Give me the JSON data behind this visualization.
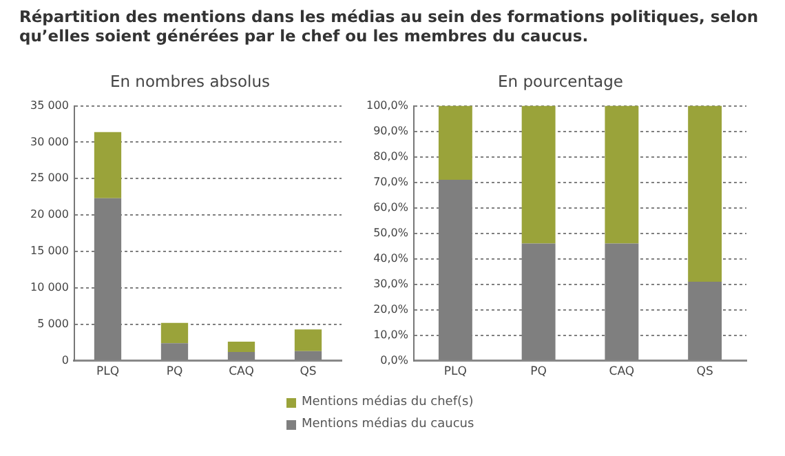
{
  "chart_data": [
    {
      "type": "bar",
      "title": "Répartition des mentions dans les médias au sein des formations politiques, selon qu’elles soient générées par le chef ou les membres du caucus.",
      "subtitle": "En nombres absolus",
      "categories": [
        "PLQ",
        "PQ",
        "CAQ",
        "QS"
      ],
      "stacked": true,
      "series": [
        {
          "name": "Mentions médias du caucus",
          "color": "#7f7f7f",
          "values": [
            22300,
            2400,
            1200,
            1300
          ]
        },
        {
          "name": "Mentions médias du chef(s)",
          "color": "#9aa33a",
          "values": [
            9100,
            2800,
            1400,
            3000
          ]
        }
      ],
      "ylim": [
        0,
        35000
      ],
      "yticks": [
        {
          "value": 0,
          "label": "0"
        },
        {
          "value": 5000,
          "label": "5 000"
        },
        {
          "value": 10000,
          "label": "10 000"
        },
        {
          "value": 15000,
          "label": "15 000"
        },
        {
          "value": 20000,
          "label": "20 000"
        },
        {
          "value": 25000,
          "label": "25 000"
        },
        {
          "value": 30000,
          "label": "30 000"
        },
        {
          "value": 35000,
          "label": "35 000"
        }
      ],
      "grid": "y",
      "legend": "bottom"
    },
    {
      "type": "bar",
      "subtitle": "En pourcentage",
      "categories": [
        "PLQ",
        "PQ",
        "CAQ",
        "QS"
      ],
      "stacked": true,
      "series": [
        {
          "name": "Mentions médias du caucus",
          "color": "#7f7f7f",
          "values": [
            71,
            46,
            46,
            31
          ]
        },
        {
          "name": "Mentions médias du chef(s)",
          "color": "#9aa33a",
          "values": [
            29,
            54,
            54,
            69
          ]
        }
      ],
      "ylim": [
        0,
        100
      ],
      "yticks": [
        {
          "value": 0,
          "label": "0,0%"
        },
        {
          "value": 10,
          "label": "10,0%"
        },
        {
          "value": 20,
          "label": "20,0%"
        },
        {
          "value": 30,
          "label": "30,0%"
        },
        {
          "value": 40,
          "label": "40,0%"
        },
        {
          "value": 50,
          "label": "50,0%"
        },
        {
          "value": 60,
          "label": "60,0%"
        },
        {
          "value": 70,
          "label": "70,0%"
        },
        {
          "value": 80,
          "label": "80,0%"
        },
        {
          "value": 90,
          "label": "90,0%"
        },
        {
          "value": 100,
          "label": "100,0%"
        }
      ],
      "grid": "y",
      "legend": "bottom"
    }
  ]
}
